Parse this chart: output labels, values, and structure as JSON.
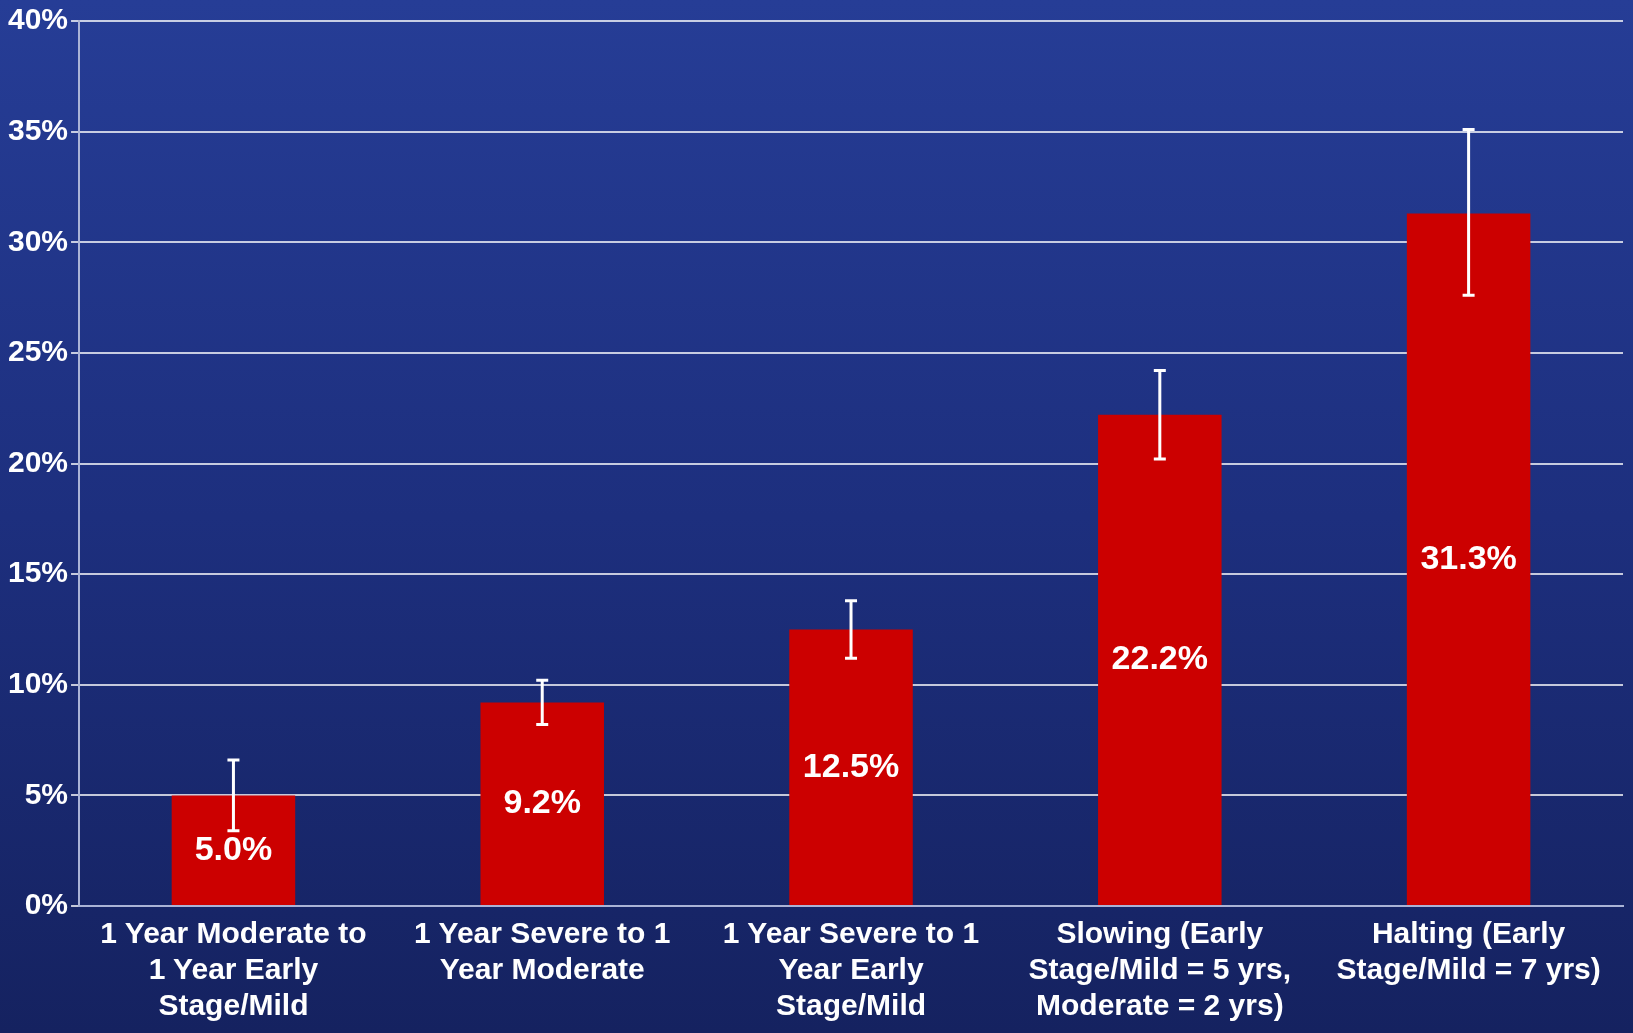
{
  "chart_data": {
    "type": "bar",
    "categories": [
      "1 Year Moderate to 1 Year Early Stage/Mild",
      "1 Year Severe to 1 Year Moderate",
      "1 Year Severe to 1 Year Early Stage/Mild",
      "Slowing (Early Stage/Mild = 5 yrs, Moderate = 2 yrs)",
      "Halting (Early Stage/Mild = 7 yrs)"
    ],
    "values": [
      5.0,
      9.2,
      12.5,
      22.2,
      31.3
    ],
    "color": "#cc0000",
    "errors": [
      [
        3.4,
        6.6
      ],
      [
        8.2,
        10.2
      ],
      [
        11.2,
        13.8
      ],
      [
        20.2,
        24.2
      ],
      [
        27.6,
        35.1
      ]
    ],
    "value_labels": [
      "5.0%",
      "9.2%",
      "12.5%",
      "22.2%",
      "31.3%"
    ],
    "ylim": [
      0,
      40
    ],
    "yticks": [
      {
        "value": 0,
        "label": "0%"
      },
      {
        "value": 5,
        "label": "5%"
      },
      {
        "value": 10,
        "label": "10%"
      },
      {
        "value": 15,
        "label": "15%"
      },
      {
        "value": 20,
        "label": "20%"
      },
      {
        "value": 25,
        "label": "25%"
      },
      {
        "value": 30,
        "label": "30%"
      },
      {
        "value": 35,
        "label": "35%"
      },
      {
        "value": 40,
        "label": "40%"
      }
    ],
    "grid": "y",
    "legend": false
  }
}
